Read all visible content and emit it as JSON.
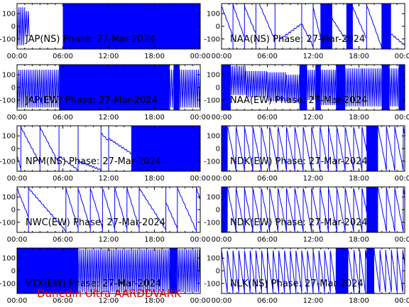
{
  "footer": "Dunedin Ultra AARDDVARK",
  "colors": {
    "trace": "#0000ff",
    "axis": "#000000",
    "footer": "#d40000"
  },
  "chart_data": [
    {
      "type": "line",
      "title": "JAP(NS) Phase: 27-Mar-2024",
      "xlim": [
        0,
        24
      ],
      "ylim": [
        -180,
        180
      ],
      "xticks": [
        "00:00",
        "06:00",
        "12:00",
        "18:00",
        "00:00"
      ],
      "yticks": [
        -100,
        0,
        100
      ],
      "pattern": "dense",
      "solid_ranges": [
        [
          6,
          24
        ]
      ],
      "segments": [
        [
          0,
          1.0,
          150,
          -150
        ],
        [
          1.0,
          1.6,
          120,
          -80
        ]
      ]
    },
    {
      "type": "line",
      "title": "NAA(NS) Phase: 27-Mar-2024",
      "xlim": [
        0,
        24
      ],
      "ylim": [
        -180,
        180
      ],
      "xticks": [
        "00:00",
        "06:00",
        "12:00",
        "18:00",
        "00:00"
      ],
      "yticks": [
        -100,
        0,
        100
      ],
      "pattern": "ramps",
      "solid_ranges": [
        [
          13.0,
          14.5
        ],
        [
          16.4,
          17.2
        ],
        [
          21.0,
          22.2
        ]
      ],
      "segments": [
        [
          0,
          1.5,
          160,
          -80
        ],
        [
          1.5,
          3.0,
          170,
          -90
        ],
        [
          3.0,
          4.5,
          160,
          -60
        ],
        [
          5.0,
          7.0,
          170,
          -110
        ],
        [
          7.5,
          10.5,
          -110,
          20
        ],
        [
          10.5,
          12.0,
          20,
          -160
        ],
        [
          12.0,
          13.0,
          150,
          -100
        ],
        [
          14.5,
          16.4,
          60,
          -120
        ],
        [
          17.2,
          19.0,
          150,
          -100
        ],
        [
          19.0,
          21.0,
          170,
          -170
        ],
        [
          22.2,
          24,
          -60,
          -150
        ]
      ]
    },
    {
      "type": "line",
      "title": "JAP(EW) Phase: 27-Mar-2024",
      "xlim": [
        0,
        24
      ],
      "ylim": [
        -180,
        180
      ],
      "xticks": [
        "00:00",
        "06:00",
        "12:00",
        "18:00",
        "00:00"
      ],
      "yticks": [
        -100,
        0,
        100
      ],
      "pattern": "dense",
      "solid_ranges": [
        [
          5.5,
          20
        ],
        [
          20.5,
          21.3
        ]
      ],
      "segments": [
        [
          0,
          5.5,
          140,
          -160
        ],
        [
          20,
          20.5,
          140,
          -160
        ],
        [
          21.3,
          24,
          140,
          -160
        ]
      ]
    },
    {
      "type": "line",
      "title": "NAA(EW) Phase: 27-Mar-2024",
      "xlim": [
        0,
        24
      ],
      "ylim": [
        -180,
        180
      ],
      "xticks": [
        "00:00",
        "06:00",
        "12:00",
        "18:00",
        "00:00"
      ],
      "yticks": [
        -100,
        0,
        100
      ],
      "pattern": "dense",
      "solid_ranges": [
        [
          0,
          1.2
        ],
        [
          10.2,
          11.2
        ],
        [
          12.3,
          13.0
        ],
        [
          15.0,
          16.2
        ],
        [
          21.0,
          22.0
        ],
        [
          23.2,
          24
        ]
      ],
      "segments": [
        [
          1.2,
          3.2,
          170,
          -60
        ],
        [
          3.2,
          6.0,
          130,
          -80
        ],
        [
          6.0,
          8.5,
          120,
          -110
        ],
        [
          8.5,
          10.2,
          100,
          -120
        ],
        [
          11.2,
          12.3,
          140,
          -100
        ],
        [
          13.0,
          15.0,
          140,
          -140
        ],
        [
          16.2,
          18.5,
          150,
          -150
        ],
        [
          18.5,
          21.0,
          150,
          -150
        ],
        [
          22.0,
          23.2,
          150,
          -150
        ]
      ]
    },
    {
      "type": "line",
      "title": "NPM(NS) Phase: 27-Mar-2024",
      "xlim": [
        0,
        24
      ],
      "ylim": [
        -180,
        180
      ],
      "xticks": [
        "00:00",
        "06:00",
        "12:00",
        "18:00",
        "00:00"
      ],
      "yticks": [
        -100,
        0,
        100
      ],
      "pattern": "ramps",
      "solid_ranges": [
        [
          15.0,
          24
        ]
      ],
      "segments": [
        [
          0,
          0.5,
          -60,
          -160
        ],
        [
          0.5,
          3.0,
          170,
          -120
        ],
        [
          3.0,
          5.5,
          170,
          -120
        ],
        [
          5.5,
          8.0,
          -60,
          -170
        ],
        [
          8.0,
          11.0,
          -100,
          -170
        ],
        [
          11.0,
          12.0,
          120,
          60
        ],
        [
          12.0,
          15.0,
          80,
          -40
        ],
        [
          15.0,
          24,
          150,
          -150
        ]
      ]
    },
    {
      "type": "line",
      "title": "NDK(EW) Phase: 27-Mar-2024",
      "xlim": [
        0,
        24
      ],
      "ylim": [
        -180,
        180
      ],
      "xticks": [
        "00:00",
        "06:00",
        "12:00",
        "18:00",
        "00:00"
      ],
      "yticks": [
        -100,
        0,
        100
      ],
      "pattern": "sawtooth",
      "solid_ranges": [
        [
          0,
          0.8
        ],
        [
          19.0,
          20.5
        ]
      ],
      "period": 1.1,
      "segments": [
        [
          0.8,
          19.0,
          170,
          -170
        ],
        [
          20.5,
          24,
          170,
          -170
        ]
      ]
    },
    {
      "type": "line",
      "title": "NWC(EW) Phase: 27-Mar-2024",
      "xlim": [
        0,
        24
      ],
      "ylim": [
        -180,
        180
      ],
      "xticks": [
        "00:00",
        "06:00",
        "12:00",
        "18:00",
        "00:00"
      ],
      "yticks": [
        -100,
        0,
        100
      ],
      "pattern": "ramps",
      "solid_ranges": [],
      "segments": [
        [
          0,
          1.5,
          170,
          -60
        ],
        [
          1.5,
          6.4,
          170,
          -170
        ],
        [
          6.4,
          8.0,
          170,
          -150
        ],
        [
          8.0,
          9.6,
          170,
          -150
        ],
        [
          9.6,
          11.2,
          170,
          -150
        ],
        [
          11.2,
          12.8,
          170,
          -150
        ],
        [
          12.8,
          14.4,
          170,
          -150
        ],
        [
          14.4,
          16.0,
          170,
          -150
        ],
        [
          16.0,
          19.5,
          170,
          -160
        ],
        [
          19.5,
          21.0,
          60,
          -150
        ],
        [
          21.0,
          23.5,
          170,
          -170
        ],
        [
          23.5,
          24,
          170,
          80
        ]
      ]
    },
    {
      "type": "line",
      "title": "NDK(EW) Phase: 27-Mar-2024",
      "xlim": [
        0,
        24
      ],
      "ylim": [
        -180,
        180
      ],
      "xticks": [
        "00:00",
        "06:00",
        "12:00",
        "18:00",
        "00:00"
      ],
      "yticks": [
        -100,
        0,
        100
      ],
      "pattern": "sawtooth",
      "solid_ranges": [
        [
          0,
          0.8
        ],
        [
          19.0,
          20.5
        ]
      ],
      "period": 1.1,
      "segments": [
        [
          0.8,
          19.0,
          170,
          -170
        ],
        [
          20.5,
          24,
          170,
          -170
        ]
      ]
    },
    {
      "type": "line",
      "title": "VTX(EW) Phase: 27-Mar-2024",
      "xlim": [
        0,
        24
      ],
      "ylim": [
        -180,
        180
      ],
      "xticks": [
        "00:00",
        "06:00",
        "12:00",
        "18:00",
        "00:00"
      ],
      "yticks": [
        -100,
        0,
        100
      ],
      "pattern": "dense",
      "solid_ranges": [
        [
          0,
          8.0
        ],
        [
          20.0,
          21.0
        ]
      ],
      "segments": [
        [
          8.0,
          20.0,
          170,
          -170
        ],
        [
          21.0,
          24,
          170,
          -170
        ]
      ]
    },
    {
      "type": "line",
      "title": "NLK(NS) Phase: 27-Mar-2024",
      "xlim": [
        0,
        24
      ],
      "ylim": [
        -180,
        180
      ],
      "xticks": [
        "00:00",
        "06:00",
        "12:00",
        "18:00",
        "00:00"
      ],
      "yticks": [
        -100,
        0,
        100
      ],
      "pattern": "sawtooth",
      "solid_ranges": [
        [
          15.0,
          16.6
        ],
        [
          19.0,
          20.0
        ]
      ],
      "period": 0.75,
      "segments": [
        [
          0,
          15.0,
          160,
          -170
        ],
        [
          16.6,
          19.0,
          160,
          -170
        ],
        [
          20.0,
          24,
          160,
          -170
        ]
      ]
    }
  ]
}
